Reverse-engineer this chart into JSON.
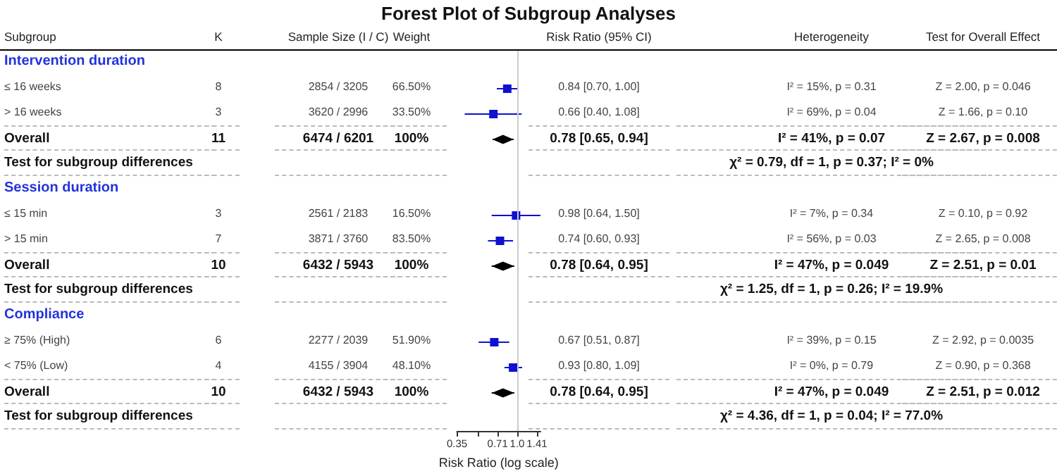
{
  "chart_data": [
    {
      "type": "other",
      "title": "Subgroup",
      "categories": [
        "Intervention duration",
        "≤  16 weeks",
        "> 16 weeks",
        "Overall",
        "Test for subgroup differences",
        "Session duration",
        "≤ 15 min",
        "> 15 min",
        "Overall",
        "Test for subgroup differences",
        "Compliance",
        "≥ 75% (High)",
        "< 75% (Low)",
        "Overall",
        "Test for subgroup differences"
      ]
    },
    {
      "type": "other",
      "title": "K",
      "categories": [
        null,
        "8",
        "3",
        "11",
        null,
        null,
        "3",
        "7",
        "10",
        null,
        null,
        "6",
        "4",
        "10",
        null
      ]
    },
    {
      "type": "other",
      "title": "Sample Size (I / C)",
      "categories": [
        null,
        "2854 / 3205",
        "3620 / 2996",
        "6474 / 6201",
        null,
        null,
        "2561 / 2183",
        "3871 / 3760",
        "6432 / 5943",
        null,
        null,
        "2277 / 2039",
        "4155 / 3904",
        "6432 / 5943",
        null
      ]
    },
    {
      "type": "other",
      "title": "Weight",
      "categories": [
        null,
        "66.50%",
        "33.50%",
        "100%",
        null,
        null,
        "16.50%",
        "83.50%",
        "100%",
        null,
        null,
        "51.90%",
        "48.10%",
        "100%",
        null
      ]
    },
    {
      "type": "scatter",
      "title": "Forest Plot of Subgroup Analyses",
      "xlabel": "Risk Ratio (log scale)",
      "orientation": "horizontal",
      "log": "x",
      "xlim": [
        0.35,
        1.5
      ],
      "xticks": [
        0.35,
        {
          "value": 0.5,
          "label": null
        },
        0.71,
        {
          "value": 1,
          "label": "1.0"
        },
        1.41
      ],
      "categories": [
        null,
        null,
        null,
        null,
        null,
        null,
        null,
        null,
        null,
        null,
        null,
        null,
        null,
        null,
        null
      ],
      "ref_lines": [
        {
          "axis": "x",
          "value": 1,
          "color": "#cccccc"
        }
      ],
      "series": [
        {
          "marker": "square",
          "color": "#1010d0",
          "values": [
            null,
            0.84,
            0.66,
            null,
            null,
            null,
            0.98,
            0.74,
            null,
            null,
            null,
            0.67,
            0.93,
            null,
            null
          ],
          "errors": [
            null,
            [
              0.7,
              1.0
            ],
            [
              0.4,
              1.08
            ],
            null,
            null,
            null,
            [
              0.64,
              1.5
            ],
            [
              0.6,
              0.93
            ],
            null,
            null,
            null,
            [
              0.51,
              0.87
            ],
            [
              0.8,
              1.09
            ],
            null,
            null
          ]
        },
        {
          "marker": "diamond",
          "color": "#000000",
          "values": [
            null,
            null,
            null,
            0.78,
            null,
            null,
            null,
            null,
            0.78,
            null,
            null,
            null,
            null,
            0.78,
            null
          ],
          "errors": [
            null,
            null,
            null,
            [
              0.65,
              0.94
            ],
            null,
            null,
            null,
            null,
            [
              0.64,
              0.95
            ],
            null,
            null,
            null,
            null,
            [
              0.64,
              0.95
            ],
            null
          ]
        }
      ]
    },
    {
      "type": "other",
      "title": "Risk Ratio (95% CI)",
      "categories": [
        null,
        "0.84 [0.70, 1.00]",
        "0.66 [0.40, 1.08]",
        "0.78 [0.65, 0.94]",
        null,
        null,
        "0.98 [0.64, 1.50]",
        "0.74 [0.60, 0.93]",
        "0.78 [0.64, 0.95]",
        null,
        null,
        "0.67 [0.51, 0.87]",
        "0.93 [0.80, 1.09]",
        "0.78 [0.64, 0.95]",
        null
      ]
    },
    {
      "type": "other",
      "title": "Heterogeneity",
      "categories": [
        null,
        "I² = 15%, p = 0.31",
        "I² = 69%, p = 0.04",
        "I² = 41%, p = 0.07",
        "χ² = 0.79, df = 1, p = 0.37; I² = 0%",
        null,
        "I² = 7%, p = 0.34",
        "I² = 56%, p = 0.03",
        "I² = 47%, p = 0.049",
        "χ²  = 1.25, df = 1, p = 0.26; I² = 19.9%",
        null,
        "I² = 39%, p = 0.15",
        "I² = 0%, p = 0.79",
        "I² = 47%, p = 0.049",
        "χ²  = 4.36, df = 1, p = 0.04; I² = 77.0%"
      ]
    },
    {
      "type": "other",
      "title": "Test for Overall Effect",
      "categories": [
        null,
        "Z = 2.00, p = 0.046",
        "Z = 1.66, p = 0.10",
        "Z = 2.67, p = 0.008",
        null,
        null,
        "Z = 0.10, p = 0.92",
        "Z = 2.65, p = 0.008",
        "Z = 2.51, p = 0.01",
        null,
        null,
        "Z = 2.92, p = 0.0035",
        "Z = 0.90, p = 0.368",
        "Z = 2.51, p = 0.012",
        null
      ]
    }
  ]
}
